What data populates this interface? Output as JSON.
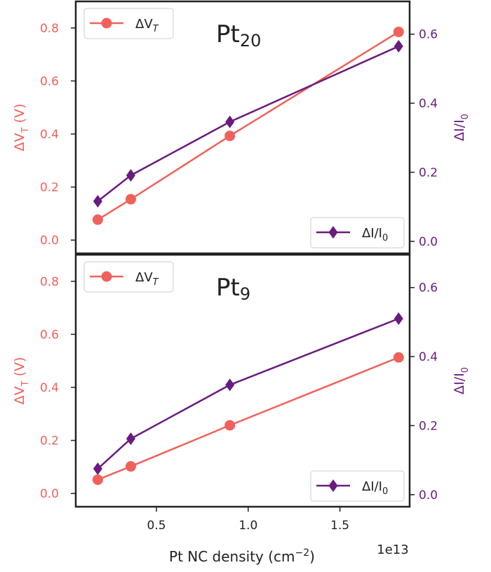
{
  "figure": {
    "xlabel": "Pt NC density (cm",
    "xlabel_sup": "−2",
    "xlabel_end": ")",
    "x_offset_label": "1e13",
    "colors": {
      "vt": "#f0615c",
      "di": "#6a1b7f",
      "axis": "#222222"
    }
  },
  "chart_data": [
    {
      "type": "line",
      "title": "Pt",
      "title_sub": "20",
      "x": [
        0.18,
        0.36,
        0.9,
        1.82
      ],
      "x_unit_multiplier": "1e13",
      "xlim": [
        0.06,
        1.88
      ],
      "xticks": [
        "0.5",
        "1.0",
        "1.5"
      ],
      "series": [
        {
          "name": "ΔV",
          "name_sub": "T",
          "axis": "left",
          "marker": "circle",
          "values": [
            0.077,
            0.154,
            0.393,
            0.785
          ]
        },
        {
          "name": "ΔI/I",
          "name_sub": "0",
          "axis": "right",
          "marker": "diamond",
          "values": [
            0.116,
            0.191,
            0.346,
            0.565
          ]
        }
      ],
      "left_axis": {
        "label": "ΔV",
        "label_sub": "T",
        "label_end": " (V)",
        "ylim": [
          -0.05,
          0.9
        ],
        "ticks": [
          "0.0",
          "0.2",
          "0.4",
          "0.6",
          "0.8"
        ]
      },
      "right_axis": {
        "label": "ΔI/I",
        "label_sub": "0",
        "ylim": [
          -0.035,
          0.695
        ],
        "ticks": [
          "0.0",
          "0.2",
          "0.4",
          "0.6"
        ]
      },
      "legend_left": "upper left",
      "legend_right": "lower right",
      "grid": false
    },
    {
      "type": "line",
      "title": "Pt",
      "title_sub": "9",
      "x": [
        0.18,
        0.36,
        0.9,
        1.82
      ],
      "x_unit_multiplier": "1e13",
      "xlim": [
        0.06,
        1.88
      ],
      "xticks": [
        "0.5",
        "1.0",
        "1.5"
      ],
      "series": [
        {
          "name": "ΔV",
          "name_sub": "T",
          "axis": "left",
          "marker": "circle",
          "values": [
            0.052,
            0.102,
            0.257,
            0.513
          ]
        },
        {
          "name": "ΔI/I",
          "name_sub": "0",
          "axis": "right",
          "marker": "diamond",
          "values": [
            0.075,
            0.162,
            0.318,
            0.51
          ]
        }
      ],
      "left_axis": {
        "label": "ΔV",
        "label_sub": "T",
        "label_end": " (V)",
        "ylim": [
          -0.05,
          0.9
        ],
        "ticks": [
          "0.0",
          "0.2",
          "0.4",
          "0.6",
          "0.8"
        ]
      },
      "right_axis": {
        "label": "ΔI/I",
        "label_sub": "0",
        "ylim": [
          -0.035,
          0.695
        ],
        "ticks": [
          "0.0",
          "0.2",
          "0.4",
          "0.6"
        ]
      },
      "legend_left": "upper left",
      "legend_right": "lower right",
      "grid": false
    }
  ]
}
